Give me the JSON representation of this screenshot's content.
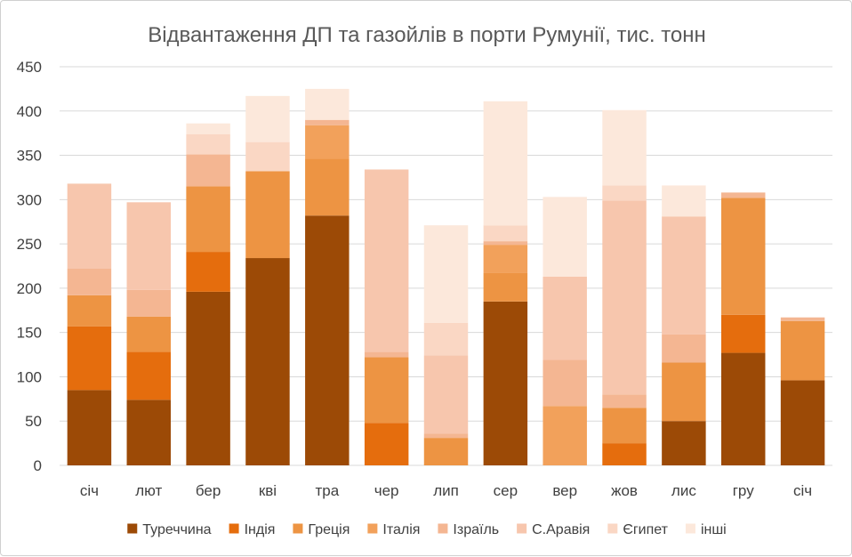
{
  "chart_data": {
    "type": "bar",
    "stacked": true,
    "title": "Відвантаження ДП та газойлів в порти Румунії, тис. тонн",
    "categories": [
      "січ",
      "лют",
      "бер",
      "кві",
      "тра",
      "чер",
      "лип",
      "сер",
      "вер",
      "жов",
      "лис",
      "гру",
      "січ"
    ],
    "ylim": [
      0,
      450
    ],
    "yticks": [
      0,
      50,
      100,
      150,
      200,
      250,
      300,
      350,
      400,
      450
    ],
    "grid": true,
    "legend_position": "bottom",
    "series": [
      {
        "name": "Туреччина",
        "color": "#9c4a06",
        "values": [
          85,
          74,
          196,
          234,
          282,
          0,
          0,
          185,
          0,
          0,
          50,
          127,
          96
        ]
      },
      {
        "name": "Індія",
        "color": "#e56d0d",
        "values": [
          72,
          54,
          45,
          0,
          0,
          48,
          0,
          0,
          0,
          25,
          0,
          43,
          0
        ]
      },
      {
        "name": "Греція",
        "color": "#ed9443",
        "values": [
          35,
          40,
          74,
          98,
          64,
          74,
          31,
          32,
          0,
          40,
          66,
          132,
          67
        ]
      },
      {
        "name": "Італія",
        "color": "#f2a15b",
        "values": [
          0,
          0,
          0,
          0,
          38,
          0,
          0,
          32,
          67,
          0,
          0,
          0,
          0
        ]
      },
      {
        "name": "Ізраїль",
        "color": "#f4b692",
        "values": [
          30,
          30,
          36,
          0,
          6,
          6,
          5,
          4,
          52,
          15,
          32,
          6,
          4
        ]
      },
      {
        "name": "С.Аравія",
        "color": "#f7c6ad",
        "values": [
          96,
          99,
          0,
          0,
          0,
          206,
          88,
          0,
          94,
          219,
          133,
          0,
          0
        ]
      },
      {
        "name": "Єгипет",
        "color": "#fad7c4",
        "values": [
          0,
          0,
          23,
          33,
          0,
          0,
          37,
          18,
          0,
          17,
          0,
          0,
          0
        ]
      },
      {
        "name": "інші",
        "color": "#fce8db",
        "values": [
          0,
          0,
          12,
          52,
          35,
          0,
          110,
          140,
          90,
          85,
          35,
          0,
          0
        ]
      }
    ]
  }
}
